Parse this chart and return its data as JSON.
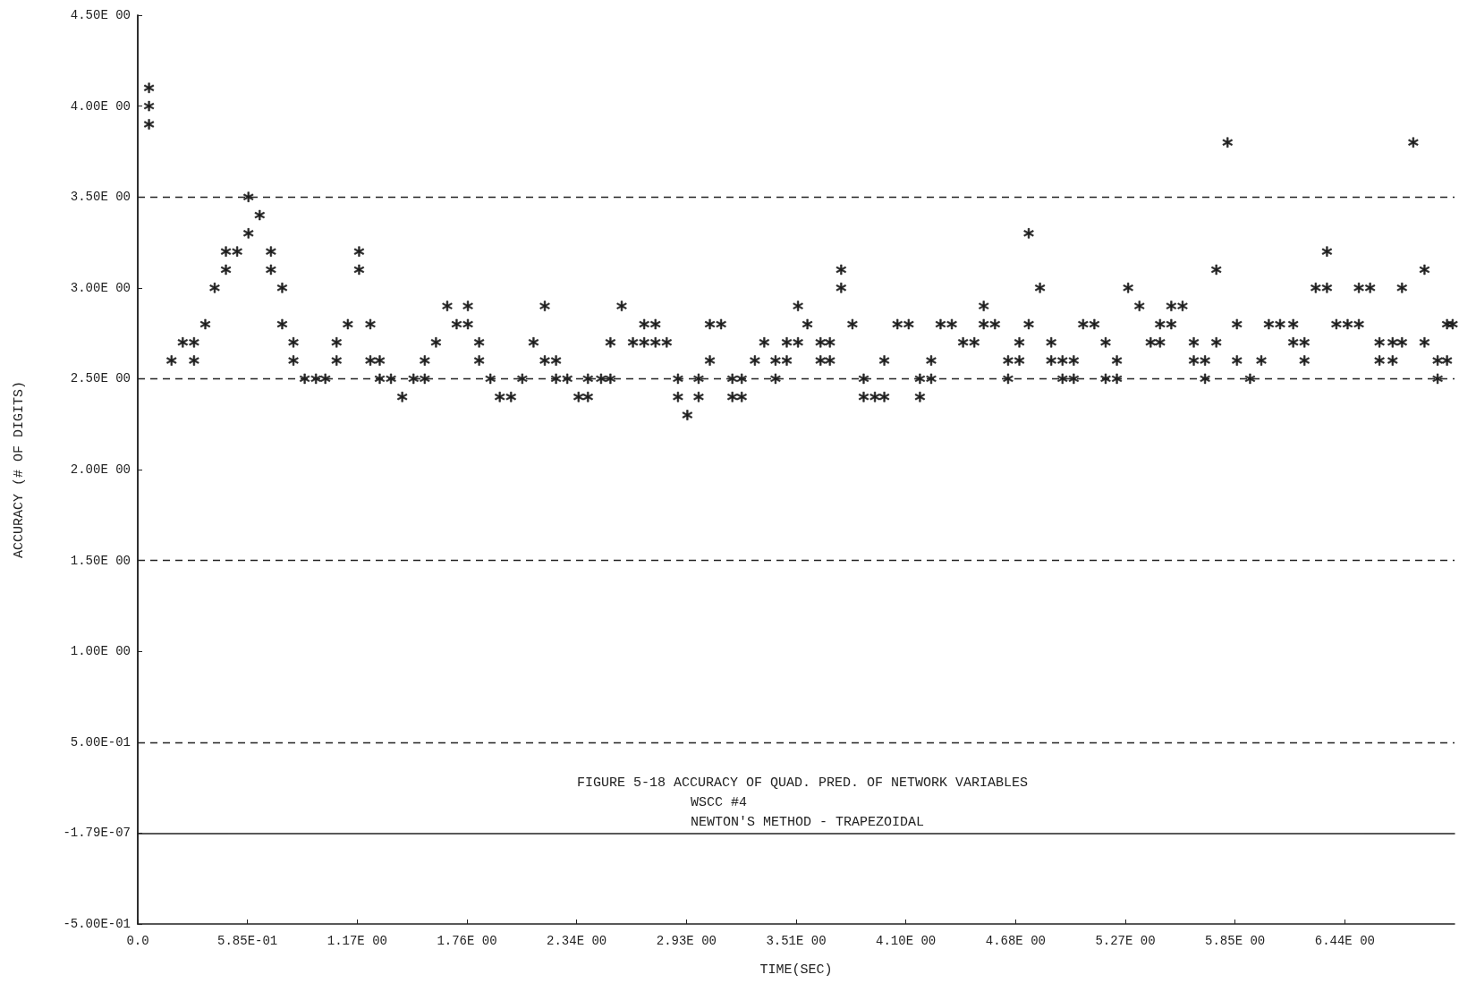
{
  "chart_data": {
    "type": "scatter",
    "xlabel": "TIME(SEC)",
    "ylabel": "ACCURACY (# OF DIGITS)",
    "annotations": [
      "FIGURE 5-18 ACCURACY OF QUAD. PRED. OF NETWORK VARIABLES",
      "WSCC #4",
      "NEWTON'S METHOD - TRAPEZOIDAL"
    ],
    "marker": "cross",
    "grid": false,
    "xlim": [
      0,
      7.02
    ],
    "xticks": [
      {
        "value": 0,
        "label": "0.0"
      },
      {
        "value": 0.585,
        "label": "5.85E-01"
      },
      {
        "value": 1.17,
        "label": "1.17E 00"
      },
      {
        "value": 1.755,
        "label": "1.76E 00"
      },
      {
        "value": 2.34,
        "label": "2.34E 00"
      },
      {
        "value": 2.925,
        "label": "2.93E 00"
      },
      {
        "value": 3.51,
        "label": "3.51E 00"
      },
      {
        "value": 4.095,
        "label": "4.10E 00"
      },
      {
        "value": 4.68,
        "label": "4.68E 00"
      },
      {
        "value": 5.265,
        "label": "5.27E 00"
      },
      {
        "value": 5.85,
        "label": "5.85E 00"
      },
      {
        "value": 6.435,
        "label": "6.44E 00"
      }
    ],
    "ylim": [
      -0.5,
      4.5
    ],
    "yticks": [
      {
        "value": -0.5,
        "label": "-5.00E-01"
      },
      {
        "value": -1.79e-07,
        "label": "-1.79E-07"
      },
      {
        "value": 0.5,
        "label": "5.00E-01"
      },
      {
        "value": 1,
        "label": "1.00E 00"
      },
      {
        "value": 1.5,
        "label": "1.50E 00"
      },
      {
        "value": 2,
        "label": "2.00E 00"
      },
      {
        "value": 2.5,
        "label": "2.50E 00"
      },
      {
        "value": 3,
        "label": "3.00E 00"
      },
      {
        "value": 3.5,
        "label": "3.50E 00"
      },
      {
        "value": 4,
        "label": "4.00E 00"
      },
      {
        "value": 4.5,
        "label": "4.50E 00"
      }
    ],
    "ref_lines": [
      {
        "axis": "y",
        "value": 3.5,
        "line_style": "dashed",
        "color": "#222222"
      },
      {
        "axis": "y",
        "value": 2.5,
        "line_style": "dashed",
        "color": "#222222"
      },
      {
        "axis": "y",
        "value": 1.5,
        "line_style": "dashed",
        "color": "#222222"
      },
      {
        "axis": "y",
        "value": 0.5,
        "line_style": "dashed",
        "color": "#222222"
      }
    ],
    "series": [
      {
        "color": "#111111",
        "x": [
          0.06,
          0.06,
          0.06,
          0.18,
          0.24,
          0.3,
          0.3,
          0.36,
          0.41,
          0.47,
          0.47,
          0.53,
          0.59,
          0.59,
          0.65,
          0.71,
          0.71,
          0.77,
          0.77,
          0.83,
          0.83,
          0.89,
          0.95,
          1.0,
          1.06,
          1.06,
          1.12,
          1.18,
          1.18,
          1.24,
          1.24,
          1.29,
          1.29,
          1.35,
          1.41,
          1.47,
          1.53,
          1.53,
          1.59,
          1.65,
          1.7,
          1.76,
          1.76,
          1.82,
          1.82,
          1.88,
          1.93,
          1.99,
          2.05,
          2.11,
          2.17,
          2.17,
          2.23,
          2.23,
          2.29,
          2.35,
          2.4,
          2.4,
          2.47,
          2.52,
          2.52,
          2.58,
          2.64,
          2.7,
          2.7,
          2.76,
          2.76,
          2.82,
          2.88,
          2.88,
          2.93,
          2.99,
          2.99,
          3.05,
          3.05,
          3.11,
          3.17,
          3.17,
          3.22,
          3.22,
          3.29,
          3.34,
          3.4,
          3.4,
          3.46,
          3.46,
          3.52,
          3.52,
          3.57,
          3.64,
          3.64,
          3.69,
          3.69,
          3.75,
          3.75,
          3.81,
          3.87,
          3.87,
          3.93,
          3.98,
          3.98,
          4.05,
          4.11,
          4.17,
          4.17,
          4.23,
          4.23,
          4.28,
          4.34,
          4.4,
          4.46,
          4.51,
          4.51,
          4.57,
          4.64,
          4.64,
          4.7,
          4.7,
          4.75,
          4.75,
          4.81,
          4.87,
          4.87,
          4.93,
          4.93,
          4.99,
          4.99,
          5.04,
          5.1,
          5.16,
          5.16,
          5.22,
          5.22,
          5.28,
          5.34,
          5.4,
          5.45,
          5.45,
          5.51,
          5.51,
          5.57,
          5.63,
          5.63,
          5.69,
          5.69,
          5.75,
          5.75,
          5.81,
          5.86,
          5.86,
          5.93,
          5.99,
          6.03,
          6.09,
          6.16,
          6.16,
          6.22,
          6.22,
          6.28,
          6.34,
          6.34,
          6.39,
          6.45,
          6.51,
          6.51,
          6.57,
          6.62,
          6.62,
          6.69,
          6.69,
          6.74,
          6.74,
          6.8,
          6.86,
          6.86,
          6.93,
          6.93,
          6.98,
          6.98,
          7.01
        ],
        "values": [
          4.1,
          4.0,
          3.9,
          2.6,
          2.7,
          2.7,
          2.6,
          2.8,
          3.0,
          3.1,
          3.2,
          3.2,
          3.5,
          3.3,
          3.4,
          3.2,
          3.1,
          3.0,
          2.8,
          2.7,
          2.6,
          2.5,
          2.5,
          2.5,
          2.7,
          2.6,
          2.8,
          3.2,
          3.1,
          2.8,
          2.6,
          2.6,
          2.5,
          2.5,
          2.4,
          2.5,
          2.6,
          2.5,
          2.7,
          2.9,
          2.8,
          2.9,
          2.8,
          2.7,
          2.6,
          2.5,
          2.4,
          2.4,
          2.5,
          2.7,
          2.9,
          2.6,
          2.6,
          2.5,
          2.5,
          2.4,
          2.4,
          2.5,
          2.5,
          2.5,
          2.7,
          2.9,
          2.7,
          2.8,
          2.7,
          2.8,
          2.7,
          2.7,
          2.5,
          2.4,
          2.3,
          2.5,
          2.4,
          2.8,
          2.6,
          2.8,
          2.5,
          2.4,
          2.5,
          2.4,
          2.6,
          2.7,
          2.6,
          2.5,
          2.7,
          2.6,
          2.9,
          2.7,
          2.8,
          2.7,
          2.6,
          2.7,
          2.6,
          3.1,
          3.0,
          2.8,
          2.5,
          2.4,
          2.4,
          2.6,
          2.4,
          2.8,
          2.8,
          2.5,
          2.4,
          2.6,
          2.5,
          2.8,
          2.8,
          2.7,
          2.7,
          2.9,
          2.8,
          2.8,
          2.6,
          2.5,
          2.7,
          2.6,
          3.3,
          2.8,
          3.0,
          2.7,
          2.6,
          2.6,
          2.5,
          2.6,
          2.5,
          2.8,
          2.8,
          2.7,
          2.5,
          2.6,
          2.5,
          3.0,
          2.9,
          2.7,
          2.7,
          2.8,
          2.8,
          2.9,
          2.9,
          2.7,
          2.6,
          2.6,
          2.5,
          3.1,
          2.7,
          3.8,
          2.8,
          2.6,
          2.5,
          2.6,
          2.8,
          2.8,
          2.8,
          2.7,
          2.7,
          2.6,
          3.0,
          3.0,
          3.2,
          2.8,
          2.8,
          2.8,
          3.0,
          3.0,
          2.7,
          2.6,
          2.7,
          2.6,
          2.7,
          3.0,
          3.8,
          3.1,
          2.7,
          2.6,
          2.5,
          2.8,
          2.6,
          2.8
        ]
      }
    ]
  }
}
